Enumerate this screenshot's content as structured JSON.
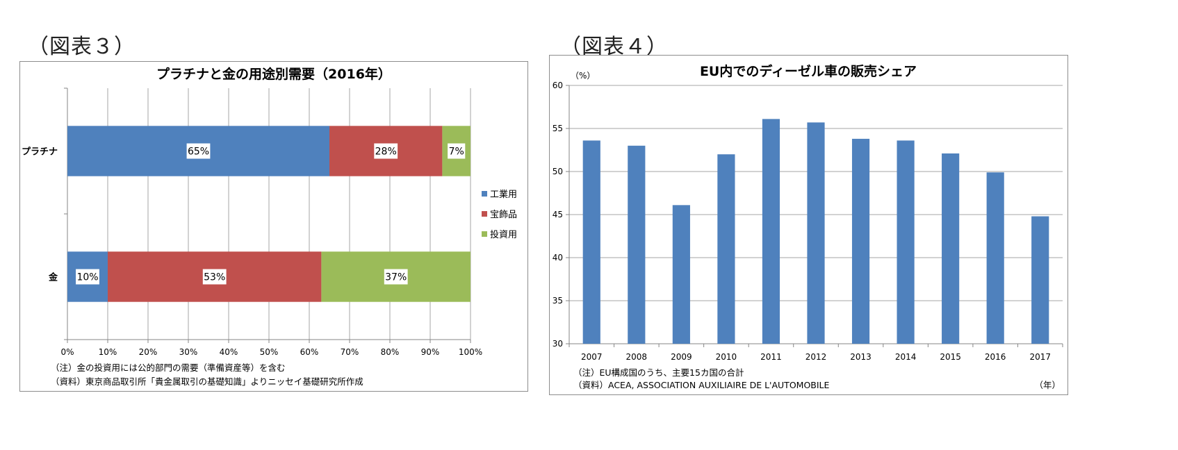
{
  "figures": [
    {
      "label": "（図表３）"
    },
    {
      "label": "（図表４）"
    }
  ],
  "chart_data": [
    {
      "type": "bar",
      "orientation": "horizontal",
      "stacked": true,
      "title": "プラチナと金の用途別需要（2016年）",
      "categories": [
        "プラチナ",
        "金"
      ],
      "series": [
        {
          "name": "工業用",
          "color": "#4f81bd",
          "values": [
            65,
            10
          ],
          "labels": [
            "65%",
            "10%"
          ]
        },
        {
          "name": "宝飾品",
          "color": "#c0504d",
          "values": [
            28,
            53
          ],
          "labels": [
            "28%",
            "53%"
          ]
        },
        {
          "name": "投資用",
          "color": "#9bbb59",
          "values": [
            7,
            37
          ],
          "labels": [
            "7%",
            "37%"
          ]
        }
      ],
      "xlim": [
        0,
        100
      ],
      "xticks": [
        "0%",
        "10%",
        "20%",
        "30%",
        "40%",
        "50%",
        "60%",
        "70%",
        "80%",
        "90%",
        "100%"
      ],
      "grid": true,
      "legend_position": "right",
      "notes": [
        "（注）金の投資用には公的部門の需要（準備資産等）を含む",
        "（資料）東京商品取引所「貴金属取引の基礎知識」よりニッセイ基礎研究所作成"
      ]
    },
    {
      "type": "bar",
      "title": "EU内でのディーゼル車の販売シェア",
      "ylabel": "（%）",
      "xlabel": "（年）",
      "categories": [
        "2007",
        "2008",
        "2009",
        "2010",
        "2011",
        "2012",
        "2013",
        "2014",
        "2015",
        "2016",
        "2017"
      ],
      "values": [
        53.6,
        53.0,
        46.1,
        52.0,
        56.1,
        55.7,
        53.8,
        53.6,
        52.1,
        49.9,
        44.8
      ],
      "color": "#4f81bd",
      "ylim": [
        30,
        60
      ],
      "yticks": [
        "30",
        "35",
        "40",
        "45",
        "50",
        "55",
        "60"
      ],
      "grid": true,
      "notes": [
        "（注）EU構成国のうち、主要15カ国の合計",
        "（資料）ACEA, ASSOCIATION AUXILIAIRE DE L'AUTOMOBILE"
      ]
    }
  ]
}
